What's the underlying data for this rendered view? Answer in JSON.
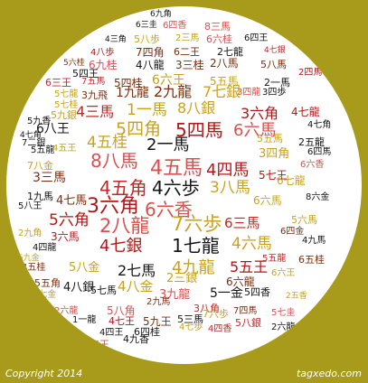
{
  "footer": {
    "copyright": "Copyright 2014",
    "brand": "tagxedo.com"
  },
  "palette": {
    "background": "#a89b1b",
    "cloud": "#ffffff",
    "word_colors": [
      "#b01818",
      "#7a2e0e",
      "#c8a21e",
      "#c02828",
      "#d85050",
      "#151515"
    ]
  },
  "words": [
    {
      "text": "6九角",
      "color": "#151515"
    },
    {
      "text": "6三圭",
      "color": "#151515"
    },
    {
      "text": "6四香",
      "color": "#d85050"
    },
    {
      "text": "8三馬",
      "color": "#d85050"
    },
    {
      "text": "4三角",
      "color": "#151515"
    },
    {
      "text": "5八歩",
      "color": "#c8a21e"
    },
    {
      "text": "2三馬",
      "color": "#c8a21e"
    },
    {
      "text": "6六桂",
      "color": "#d85050"
    },
    {
      "text": "6四王",
      "color": "#151515"
    },
    {
      "text": "4八歩",
      "color": "#b01818"
    },
    {
      "text": "7四角",
      "color": "#7a2e0e"
    },
    {
      "text": "6二王",
      "color": "#7a2e0e"
    },
    {
      "text": "2七龍",
      "color": "#151515"
    },
    {
      "text": "4七銀",
      "color": "#c02828"
    },
    {
      "text": "5六桂",
      "color": "#7a2e0e"
    },
    {
      "text": "6九桂",
      "color": "#d85050"
    },
    {
      "text": "4八龍",
      "color": "#151515"
    },
    {
      "text": "3三桂",
      "color": "#7a2e0e"
    },
    {
      "text": "2八馬",
      "color": "#7a2e0e"
    },
    {
      "text": "5八馬",
      "color": "#7a2e0e"
    },
    {
      "text": "5四王",
      "color": "#151515"
    },
    {
      "text": "2四馬",
      "color": "#b01818"
    },
    {
      "text": "6三王",
      "color": "#c02828"
    },
    {
      "text": "7五馬",
      "color": "#c02828"
    },
    {
      "text": "5四桂",
      "color": "#7a2e0e"
    },
    {
      "text": "6六王",
      "color": "#c8a21e"
    },
    {
      "text": "5五馬",
      "color": "#c8a21e"
    },
    {
      "text": "2一馬",
      "color": "#151515"
    },
    {
      "text": "3四龍",
      "color": "#d85050"
    },
    {
      "text": "5七龍",
      "color": "#c8a21e"
    },
    {
      "text": "3九飛",
      "color": "#7a2e0e"
    },
    {
      "text": "1九龍",
      "color": "#7a2e0e"
    },
    {
      "text": "2九龍",
      "color": "#7a2e0e"
    },
    {
      "text": "7七銀",
      "color": "#c8a21e"
    },
    {
      "text": "3四歩",
      "color": "#151515"
    },
    {
      "text": "5七桂",
      "color": "#c8a21e"
    },
    {
      "text": "5九銀",
      "color": "#c8a21e"
    },
    {
      "text": "4三馬",
      "color": "#c02828"
    },
    {
      "text": "1一馬",
      "color": "#c8a21e"
    },
    {
      "text": "8八銀",
      "color": "#c8a21e"
    },
    {
      "text": "3六角",
      "color": "#b01818"
    },
    {
      "text": "4七龍",
      "color": "#b01818"
    },
    {
      "text": "5九香",
      "color": "#151515"
    },
    {
      "text": "4七角",
      "color": "#151515"
    },
    {
      "text": "6八王",
      "color": "#151515"
    },
    {
      "text": "5四角",
      "color": "#c8a21e"
    },
    {
      "text": "5四馬",
      "color": "#b01818"
    },
    {
      "text": "6六馬",
      "color": "#d85050"
    },
    {
      "text": "4七角",
      "color": "#151515"
    },
    {
      "text": "7二銀",
      "color": "#151515"
    },
    {
      "text": "4五桂",
      "color": "#c8a21e"
    },
    {
      "text": "2一馬",
      "color": "#151515"
    },
    {
      "text": "5五馬",
      "color": "#c8a21e"
    },
    {
      "text": "2五龍",
      "color": "#151515"
    },
    {
      "text": "5五龍",
      "color": "#151515"
    },
    {
      "text": "4五王",
      "color": "#c8a21e"
    },
    {
      "text": "3四角",
      "color": "#c8a21e"
    },
    {
      "text": "6四馬",
      "color": "#151515"
    },
    {
      "text": "7八金",
      "color": "#c8a21e"
    },
    {
      "text": "8八馬",
      "color": "#d85050"
    },
    {
      "text": "4五馬",
      "color": "#d85050"
    },
    {
      "text": "4四馬",
      "color": "#b01818"
    },
    {
      "text": "6六香",
      "color": "#d85050"
    },
    {
      "text": "5七王",
      "color": "#b01818"
    },
    {
      "text": "3三馬",
      "color": "#7a2e0e"
    },
    {
      "text": "4五角",
      "color": "#c02828"
    },
    {
      "text": "4六歩",
      "color": "#151515"
    },
    {
      "text": "3八馬",
      "color": "#c8a21e"
    },
    {
      "text": "6七龍",
      "color": "#c8a21e"
    },
    {
      "text": "1九馬",
      "color": "#151515"
    },
    {
      "text": "4七馬",
      "color": "#7a2e0e"
    },
    {
      "text": "3六角",
      "color": "#b01818"
    },
    {
      "text": "6六香",
      "color": "#d85050"
    },
    {
      "text": "6六馬",
      "color": "#c8a21e"
    },
    {
      "text": "8六金",
      "color": "#151515"
    },
    {
      "text": "5八王",
      "color": "#151515"
    },
    {
      "text": "5六角",
      "color": "#b01818"
    },
    {
      "text": "2八龍",
      "color": "#d85050"
    },
    {
      "text": "7六歩",
      "color": "#c8a21e"
    },
    {
      "text": "6三馬",
      "color": "#c02828"
    },
    {
      "text": "5六馬",
      "color": "#c8a21e"
    },
    {
      "text": "3六馬",
      "color": "#b01818"
    },
    {
      "text": "4七銀",
      "color": "#b01818"
    },
    {
      "text": "1七龍",
      "color": "#151515"
    },
    {
      "text": "4六馬",
      "color": "#c8a21e"
    },
    {
      "text": "6四金",
      "color": "#7a2e0e"
    },
    {
      "text": "4九馬",
      "color": "#151515"
    },
    {
      "text": "2九角",
      "color": "#c8a21e"
    },
    {
      "text": "4四龍",
      "color": "#151515"
    },
    {
      "text": "5九金",
      "color": "#c8a21e"
    },
    {
      "text": "4五桂",
      "color": "#7a2e0e"
    },
    {
      "text": "5八金",
      "color": "#c8a21e"
    },
    {
      "text": "2七馬",
      "color": "#151515"
    },
    {
      "text": "4九龍",
      "color": "#c8a21e"
    },
    {
      "text": "5五王",
      "color": "#b01818"
    },
    {
      "text": "5五龍",
      "color": "#c02828"
    },
    {
      "text": "6五桂",
      "color": "#7a2e0e"
    },
    {
      "text": "5五角",
      "color": "#7a2e0e"
    },
    {
      "text": "4八銀",
      "color": "#151515"
    },
    {
      "text": "4八金",
      "color": "#c8a21e"
    },
    {
      "text": "2三銀",
      "color": "#c8a21e"
    },
    {
      "text": "6六龍",
      "color": "#7a2e0e"
    },
    {
      "text": "6六王",
      "color": "#c8a21e"
    },
    {
      "text": "5七金",
      "color": "#c8a21e"
    },
    {
      "text": "5七馬",
      "color": "#151515"
    },
    {
      "text": "3九龍",
      "color": "#d85050"
    },
    {
      "text": "5一金",
      "color": "#151515"
    },
    {
      "text": "5四香",
      "color": "#151515"
    },
    {
      "text": "2五香",
      "color": "#c8a21e"
    },
    {
      "text": "2六龍",
      "color": "#d85050"
    },
    {
      "text": "5八角",
      "color": "#d85050"
    },
    {
      "text": "3八角",
      "color": "#c02828"
    },
    {
      "text": "2九馬",
      "color": "#7a2e0e"
    },
    {
      "text": "7四馬",
      "color": "#7a2e0e"
    },
    {
      "text": "5七圭",
      "color": "#d85050"
    },
    {
      "text": "1一龍",
      "color": "#151515"
    },
    {
      "text": "4七王",
      "color": "#b01818"
    },
    {
      "text": "5九王",
      "color": "#7a2e0e"
    },
    {
      "text": "5三馬",
      "color": "#151515"
    },
    {
      "text": "7六歩",
      "color": "#c8a21e"
    },
    {
      "text": "5八銀",
      "color": "#c02828"
    },
    {
      "text": "2六龍",
      "color": "#151515"
    },
    {
      "text": "4四王",
      "color": "#151515"
    },
    {
      "text": "6四桂",
      "color": "#151515"
    },
    {
      "text": "4七歩",
      "color": "#c8a21e"
    },
    {
      "text": "4四香",
      "color": "#c02828"
    },
    {
      "text": "5三王",
      "color": "#d85050"
    },
    {
      "text": "4九香",
      "color": "#151515"
    }
  ]
}
